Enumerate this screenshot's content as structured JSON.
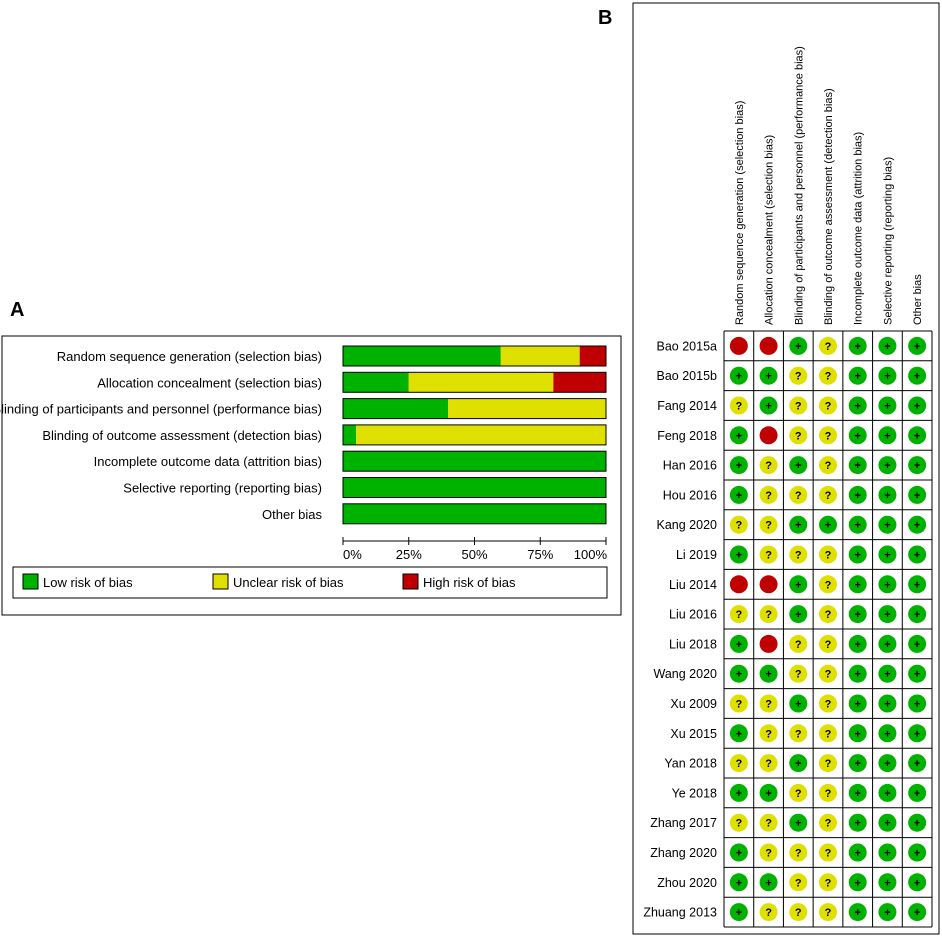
{
  "panel_a": {
    "label": "A",
    "chart_data": {
      "type": "bar",
      "orientation": "horizontal",
      "stacked": true,
      "title": "",
      "xlabel": "",
      "ylabel": "",
      "xlim": [
        0,
        100
      ],
      "categories": [
        "Random sequence generation (selection bias)",
        "Allocation concealment (selection bias)",
        "Blinding of participants and personnel (performance bias)",
        "Blinding of outcome assessment (detection bias)",
        "Incomplete outcome data (attrition bias)",
        "Selective reporting (reporting bias)",
        "Other bias"
      ],
      "series": [
        {
          "name": "Low risk of bias",
          "color": "#00b200",
          "values": [
            60,
            25,
            40,
            5,
            100,
            100,
            100
          ]
        },
        {
          "name": "Unclear risk of bias",
          "color": "#e0e000",
          "values": [
            30,
            55,
            60,
            95,
            0,
            0,
            0
          ]
        },
        {
          "name": "High risk of bias",
          "color": "#c00000",
          "values": [
            10,
            20,
            0,
            0,
            0,
            0,
            0
          ]
        }
      ],
      "x_ticks": [
        0,
        25,
        50,
        75,
        100
      ],
      "x_tick_labels": [
        "0%",
        "25%",
        "50%",
        "75%",
        "100%"
      ],
      "legend_position": "bottom"
    }
  },
  "panel_b": {
    "label": "B",
    "chart_data": {
      "type": "table",
      "columns": [
        "Random sequence generation (selection bias)",
        "Allocation concealment (selection bias)",
        "Blinding of participants and personnel (performance bias)",
        "Blinding of outcome assessment (detection bias)",
        "Incomplete outcome data (attrition bias)",
        "Selective reporting (reporting bias)",
        "Other bias"
      ],
      "rows": [
        {
          "study": "Bao 2015a",
          "ratings": [
            "high",
            "high",
            "low",
            "unclear",
            "low",
            "low",
            "low"
          ]
        },
        {
          "study": "Bao 2015b",
          "ratings": [
            "low",
            "low",
            "unclear",
            "unclear",
            "low",
            "low",
            "low"
          ]
        },
        {
          "study": "Fang 2014",
          "ratings": [
            "unclear",
            "low",
            "unclear",
            "unclear",
            "low",
            "low",
            "low"
          ]
        },
        {
          "study": "Feng 2018",
          "ratings": [
            "low",
            "high",
            "unclear",
            "unclear",
            "low",
            "low",
            "low"
          ]
        },
        {
          "study": "Han 2016",
          "ratings": [
            "low",
            "unclear",
            "low",
            "unclear",
            "low",
            "low",
            "low"
          ]
        },
        {
          "study": "Hou 2016",
          "ratings": [
            "low",
            "unclear",
            "unclear",
            "unclear",
            "low",
            "low",
            "low"
          ]
        },
        {
          "study": "Kang 2020",
          "ratings": [
            "unclear",
            "unclear",
            "low",
            "low",
            "low",
            "low",
            "low"
          ]
        },
        {
          "study": "Li 2019",
          "ratings": [
            "low",
            "unclear",
            "unclear",
            "unclear",
            "low",
            "low",
            "low"
          ]
        },
        {
          "study": "Liu 2014",
          "ratings": [
            "high",
            "high",
            "low",
            "unclear",
            "low",
            "low",
            "low"
          ]
        },
        {
          "study": "Liu 2016",
          "ratings": [
            "unclear",
            "unclear",
            "low",
            "unclear",
            "low",
            "low",
            "low"
          ]
        },
        {
          "study": "Liu 2018",
          "ratings": [
            "low",
            "high",
            "unclear",
            "unclear",
            "low",
            "low",
            "low"
          ]
        },
        {
          "study": "Wang 2020",
          "ratings": [
            "low",
            "low",
            "unclear",
            "unclear",
            "low",
            "low",
            "low"
          ]
        },
        {
          "study": "Xu 2009",
          "ratings": [
            "unclear",
            "unclear",
            "low",
            "unclear",
            "low",
            "low",
            "low"
          ]
        },
        {
          "study": "Xu 2015",
          "ratings": [
            "low",
            "unclear",
            "unclear",
            "unclear",
            "low",
            "low",
            "low"
          ]
        },
        {
          "study": "Yan 2018",
          "ratings": [
            "unclear",
            "unclear",
            "low",
            "unclear",
            "low",
            "low",
            "low"
          ]
        },
        {
          "study": "Ye 2018",
          "ratings": [
            "low",
            "low",
            "unclear",
            "unclear",
            "low",
            "low",
            "low"
          ]
        },
        {
          "study": "Zhang 2017",
          "ratings": [
            "unclear",
            "unclear",
            "low",
            "unclear",
            "low",
            "low",
            "low"
          ]
        },
        {
          "study": "Zhang 2020",
          "ratings": [
            "low",
            "unclear",
            "unclear",
            "unclear",
            "low",
            "low",
            "low"
          ]
        },
        {
          "study": "Zhou 2020",
          "ratings": [
            "low",
            "low",
            "unclear",
            "unclear",
            "low",
            "low",
            "low"
          ]
        },
        {
          "study": "Zhuang 2013",
          "ratings": [
            "low",
            "unclear",
            "unclear",
            "unclear",
            "low",
            "low",
            "low"
          ]
        }
      ],
      "symbols": {
        "low": {
          "glyph": "+",
          "color": "#00b200"
        },
        "unclear": {
          "glyph": "?",
          "color": "#e0e000"
        },
        "high": {
          "glyph": "",
          "color": "#c00000"
        }
      }
    }
  }
}
